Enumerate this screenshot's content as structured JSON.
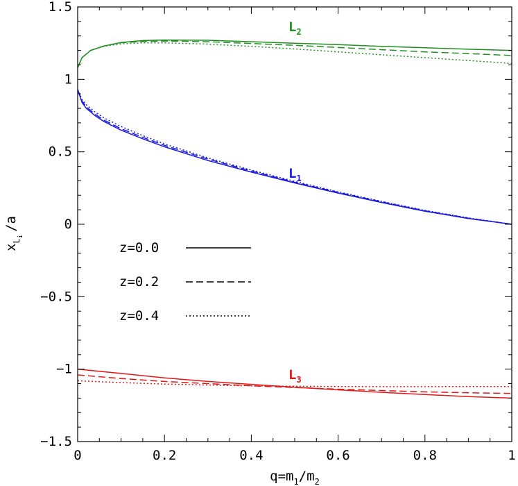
{
  "chart_data": {
    "type": "line",
    "xlabel": {
      "base": "q=m",
      "sub1": "1",
      "mid": "/m",
      "sub2": "2"
    },
    "ylabel": {
      "base": "x",
      "sub": "L",
      "subsub": "i",
      "rest": "/a"
    },
    "xlim": [
      0,
      1
    ],
    "ylim": [
      -1.5,
      1.5
    ],
    "x_ticks": [
      {
        "v": 0,
        "label": "0"
      },
      {
        "v": 0.2,
        "label": "0.2"
      },
      {
        "v": 0.4,
        "label": "0.4"
      },
      {
        "v": 0.6,
        "label": "0.6"
      },
      {
        "v": 0.8,
        "label": "0.8"
      },
      {
        "v": 1,
        "label": "1"
      }
    ],
    "y_ticks": [
      {
        "v": -1.5,
        "label": "−1.5"
      },
      {
        "v": -1,
        "label": "−1"
      },
      {
        "v": -0.5,
        "label": "−0.5"
      },
      {
        "v": 0,
        "label": "0"
      },
      {
        "v": 0.5,
        "label": "0.5"
      },
      {
        "v": 1,
        "label": "1"
      },
      {
        "v": 1.5,
        "label": "1.5"
      }
    ],
    "colors": {
      "L1": "#1a1adb",
      "L2": "#1f8f1f",
      "L3": "#e01818"
    },
    "curve_labels": [
      {
        "id": "L1",
        "text": "L",
        "sub": "1",
        "x": 0.5,
        "y": 0.35
      },
      {
        "id": "L2",
        "text": "L",
        "sub": "2",
        "x": 0.5,
        "y": 1.36
      },
      {
        "id": "L3",
        "text": "L",
        "sub": "3",
        "x": 0.5,
        "y": -1.04
      }
    ],
    "legend": {
      "placement": "center-left",
      "entries": [
        {
          "label": "z=0.0",
          "style": "solid"
        },
        {
          "label": "z=0.2",
          "style": "dashed"
        },
        {
          "label": "z=0.4",
          "style": "dotted"
        }
      ]
    },
    "series": [
      {
        "group": "L2",
        "style": "solid",
        "x": [
          0,
          0.01,
          0.03,
          0.06,
          0.1,
          0.15,
          0.2,
          0.3,
          0.4,
          0.5,
          0.6,
          0.7,
          0.8,
          0.9,
          1.0
        ],
        "y": [
          1.08,
          1.15,
          1.2,
          1.23,
          1.255,
          1.268,
          1.272,
          1.27,
          1.26,
          1.25,
          1.24,
          1.228,
          1.218,
          1.208,
          1.2
        ]
      },
      {
        "group": "L2",
        "style": "dashed",
        "x": [
          0,
          0.01,
          0.03,
          0.06,
          0.1,
          0.15,
          0.2,
          0.3,
          0.4,
          0.5,
          0.6,
          0.7,
          0.8,
          0.9,
          1.0
        ],
        "y": [
          1.08,
          1.15,
          1.2,
          1.23,
          1.253,
          1.262,
          1.265,
          1.26,
          1.248,
          1.235,
          1.22,
          1.205,
          1.19,
          1.178,
          1.165
        ]
      },
      {
        "group": "L2",
        "style": "dotted",
        "x": [
          0,
          0.01,
          0.03,
          0.06,
          0.1,
          0.15,
          0.2,
          0.3,
          0.4,
          0.5,
          0.6,
          0.7,
          0.8,
          0.9,
          1.0
        ],
        "y": [
          1.08,
          1.15,
          1.2,
          1.228,
          1.245,
          1.252,
          1.252,
          1.243,
          1.228,
          1.21,
          1.19,
          1.17,
          1.15,
          1.13,
          1.11
        ]
      },
      {
        "group": "L1",
        "style": "solid",
        "x": [
          0,
          0.01,
          0.02,
          0.04,
          0.06,
          0.1,
          0.15,
          0.2,
          0.3,
          0.4,
          0.5,
          0.6,
          0.7,
          0.8,
          0.9,
          1.0
        ],
        "y": [
          0.93,
          0.84,
          0.8,
          0.75,
          0.71,
          0.65,
          0.59,
          0.535,
          0.44,
          0.36,
          0.285,
          0.215,
          0.15,
          0.09,
          0.04,
          0
        ]
      },
      {
        "group": "L1",
        "style": "dashed",
        "x": [
          0,
          0.01,
          0.02,
          0.04,
          0.06,
          0.1,
          0.15,
          0.2,
          0.3,
          0.4,
          0.5,
          0.6,
          0.7,
          0.8,
          0.9,
          1.0
        ],
        "y": [
          0.93,
          0.85,
          0.81,
          0.76,
          0.72,
          0.66,
          0.6,
          0.545,
          0.45,
          0.368,
          0.29,
          0.22,
          0.155,
          0.093,
          0.042,
          0
        ]
      },
      {
        "group": "L1",
        "style": "dotted",
        "x": [
          0,
          0.01,
          0.02,
          0.04,
          0.06,
          0.1,
          0.15,
          0.2,
          0.3,
          0.4,
          0.5,
          0.6,
          0.7,
          0.8,
          0.9,
          1.0
        ],
        "y": [
          0.93,
          0.86,
          0.825,
          0.775,
          0.735,
          0.675,
          0.612,
          0.555,
          0.458,
          0.374,
          0.296,
          0.224,
          0.158,
          0.096,
          0.044,
          0
        ]
      },
      {
        "group": "L3",
        "style": "solid",
        "x": [
          0,
          0.1,
          0.2,
          0.3,
          0.4,
          0.5,
          0.6,
          0.7,
          0.8,
          0.9,
          1.0
        ],
        "y": [
          -1.0,
          -1.03,
          -1.06,
          -1.085,
          -1.105,
          -1.125,
          -1.143,
          -1.16,
          -1.175,
          -1.19,
          -1.2
        ]
      },
      {
        "group": "L3",
        "style": "dashed",
        "x": [
          0,
          0.1,
          0.2,
          0.3,
          0.4,
          0.5,
          0.6,
          0.7,
          0.8,
          0.9,
          1.0
        ],
        "y": [
          -1.04,
          -1.065,
          -1.085,
          -1.1,
          -1.115,
          -1.127,
          -1.138,
          -1.148,
          -1.157,
          -1.163,
          -1.168
        ]
      },
      {
        "group": "L3",
        "style": "dotted",
        "x": [
          0,
          0.1,
          0.2,
          0.3,
          0.4,
          0.5,
          0.6,
          0.7,
          0.8,
          0.9,
          1.0
        ],
        "y": [
          -1.08,
          -1.093,
          -1.103,
          -1.11,
          -1.115,
          -1.118,
          -1.12,
          -1.121,
          -1.121,
          -1.12,
          -1.12
        ]
      }
    ]
  }
}
